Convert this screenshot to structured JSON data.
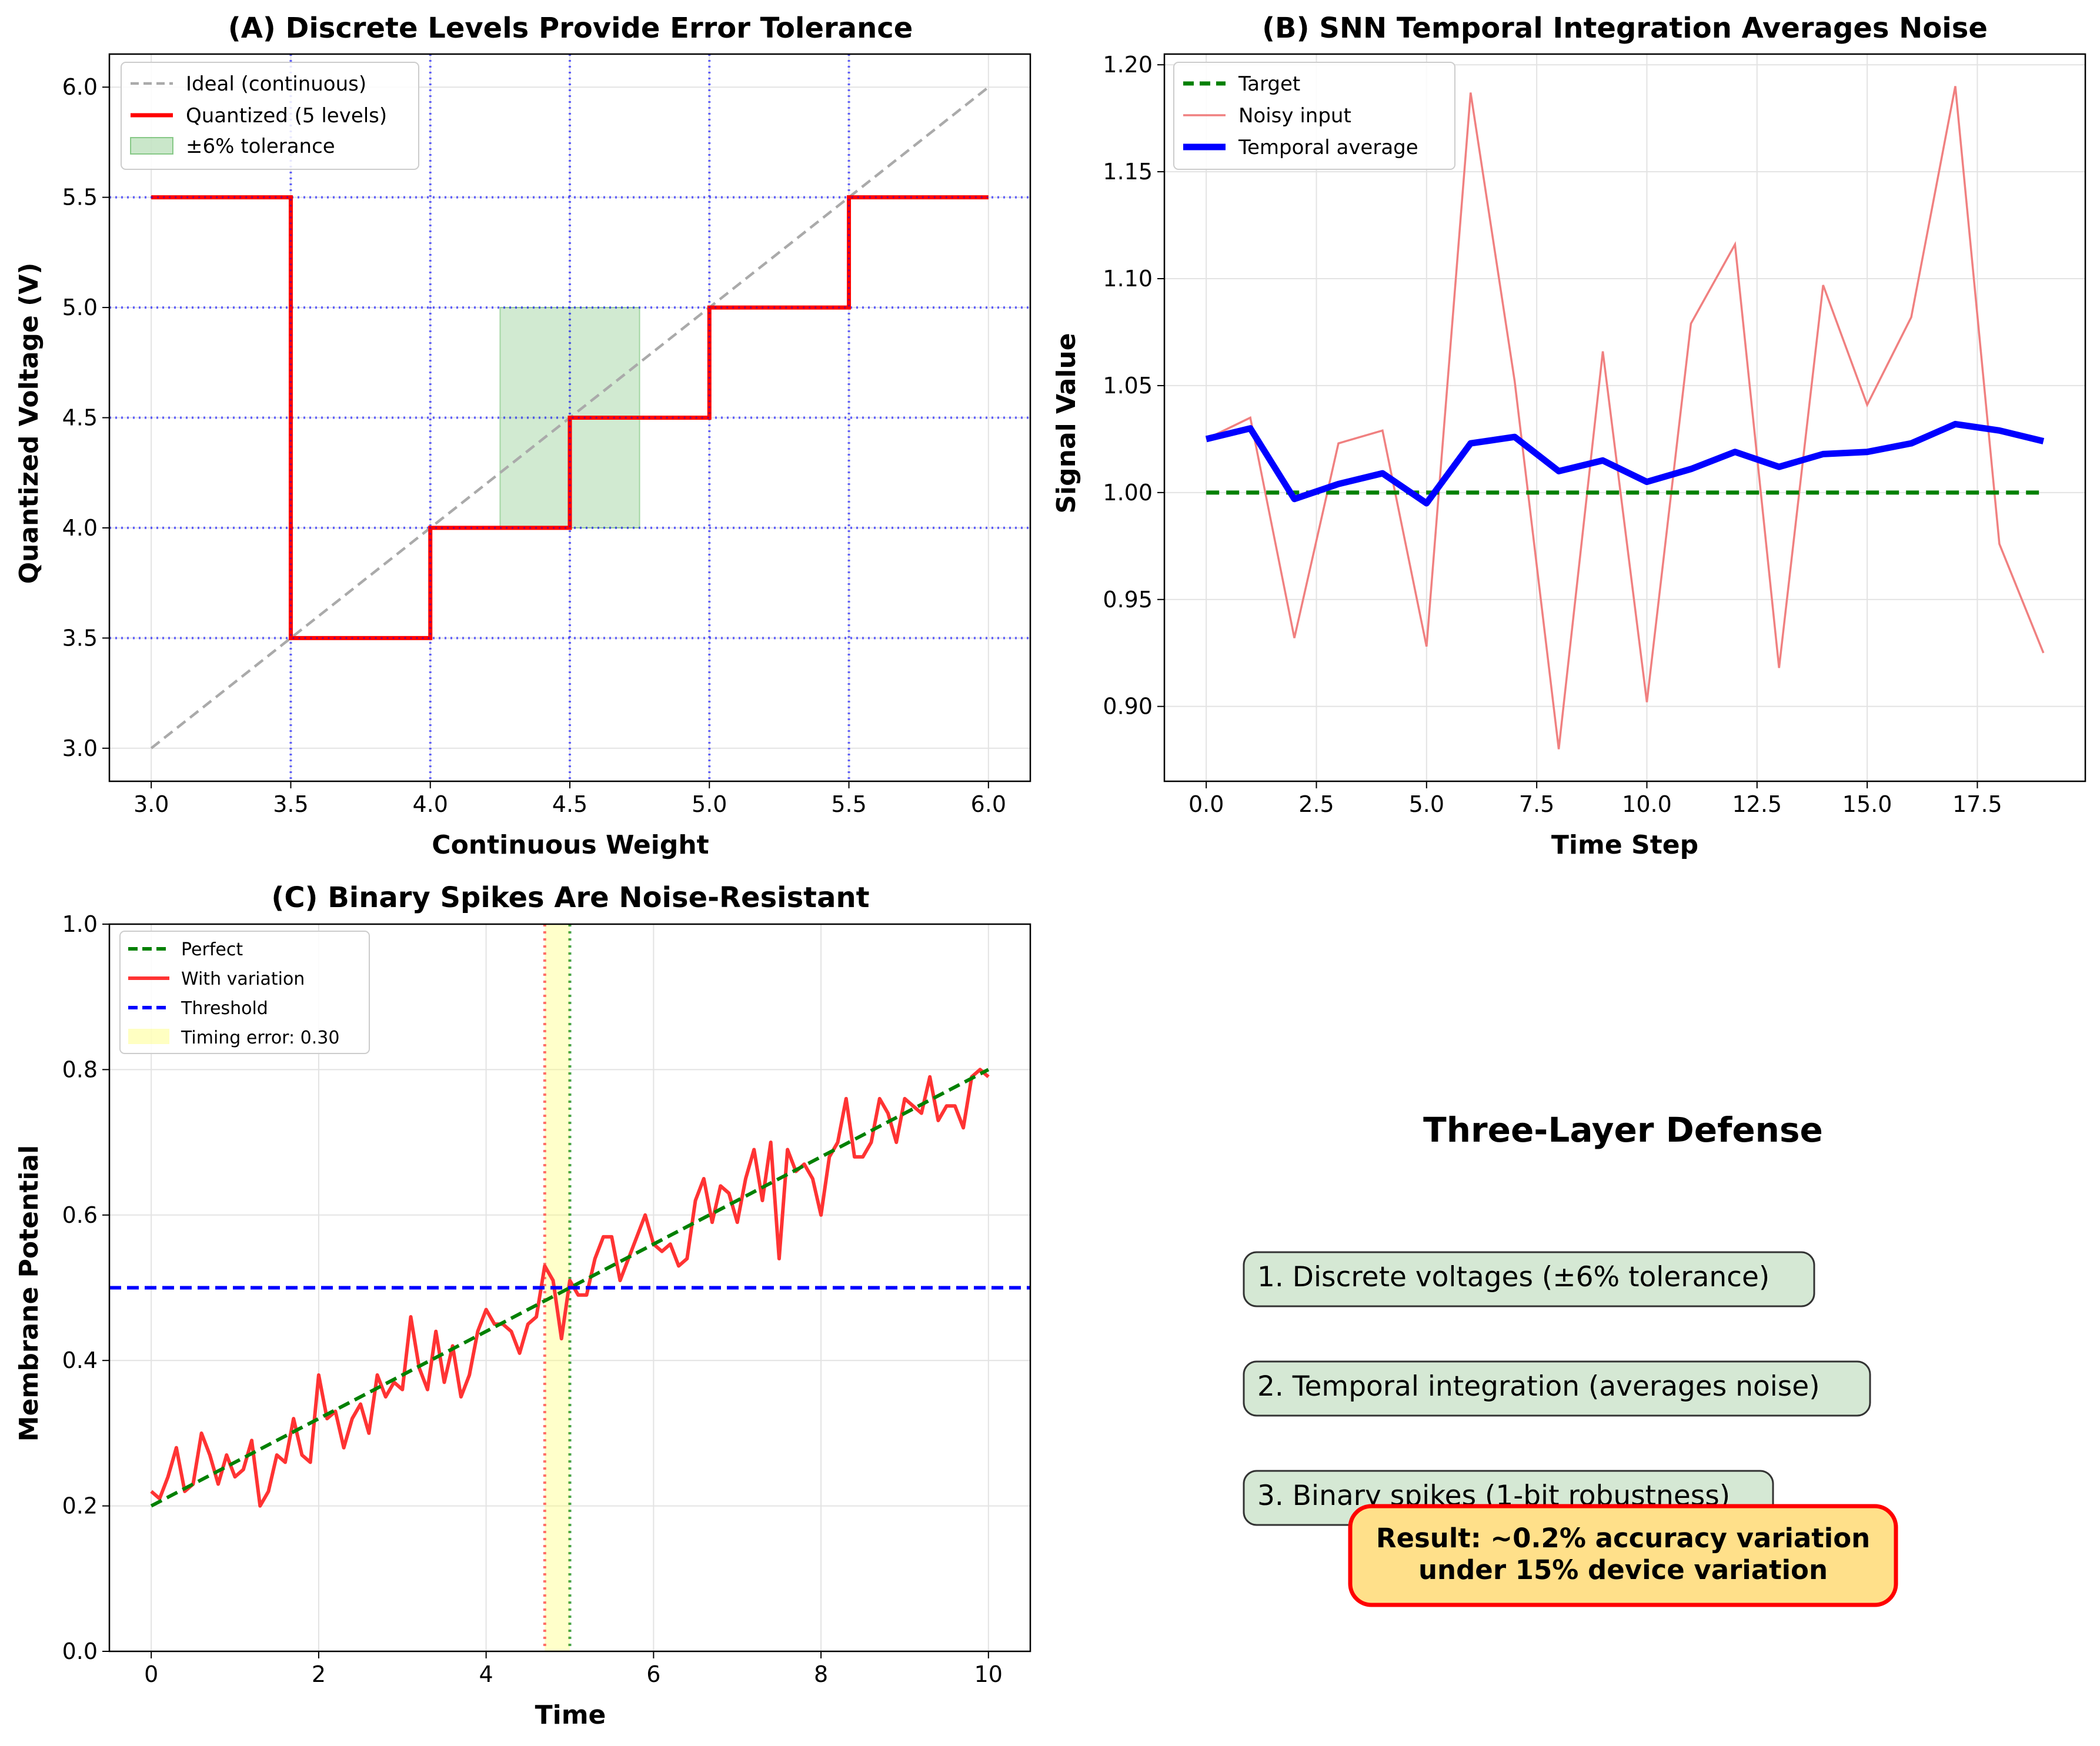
{
  "chart_data": [
    {
      "panel": "A",
      "type": "line",
      "title": "(A) Discrete Levels Provide Error Tolerance",
      "xlabel": "Continuous Weight",
      "ylabel": "Quantized Voltage (V)",
      "xlim": [
        2.85,
        6.15
      ],
      "ylim": [
        2.85,
        6.15
      ],
      "xticks": [
        "3.0",
        "3.5",
        "4.0",
        "4.5",
        "5.0",
        "5.5",
        "6.0"
      ],
      "yticks": [
        "3.0",
        "3.5",
        "4.0",
        "4.5",
        "5.0",
        "5.5",
        "6.0"
      ],
      "grid": true,
      "legend_position": "upper-left",
      "series": [
        {
          "name": "Ideal (continuous)",
          "style": "dashed",
          "color": "#aaaaaa",
          "x": [
            3.0,
            6.0
          ],
          "y": [
            3.0,
            6.0
          ]
        },
        {
          "name": "Quantized (5 levels)",
          "style": "step",
          "color": "#ff0000",
          "x": [
            3.0,
            3.5,
            3.5,
            4.0,
            4.0,
            4.5,
            4.5,
            5.0,
            5.0,
            5.5,
            5.5,
            6.0
          ],
          "y": [
            5.5,
            5.5,
            3.5,
            3.5,
            4.0,
            4.0,
            4.5,
            4.5,
            5.0,
            5.0,
            5.5,
            5.5
          ]
        }
      ],
      "tolerance_band": {
        "name": "±6% tolerance",
        "color": "#2ca02c",
        "x": [
          4.25,
          4.75
        ],
        "y": [
          4.0,
          5.0
        ]
      },
      "level_lines": {
        "color": "#0000ff",
        "horizontal": [
          3.5,
          4.0,
          4.5,
          5.0,
          5.5
        ],
        "vertical": [
          3.5,
          4.0,
          4.5,
          5.0,
          5.5
        ]
      }
    },
    {
      "panel": "B",
      "type": "line",
      "title": "(B) SNN Temporal Integration Averages Noise",
      "xlabel": "Time Step",
      "ylabel": "Signal Value",
      "xlim": [
        -0.95,
        19.95
      ],
      "ylim": [
        0.865,
        1.205
      ],
      "xticks": [
        "0.0",
        "2.5",
        "5.0",
        "7.5",
        "10.0",
        "12.5",
        "15.0",
        "17.5"
      ],
      "yticks": [
        "0.90",
        "0.95",
        "1.00",
        "1.05",
        "1.10",
        "1.15",
        "1.20"
      ],
      "grid": true,
      "legend_position": "upper-left",
      "x": [
        0,
        1,
        2,
        3,
        4,
        5,
        6,
        7,
        8,
        9,
        10,
        11,
        12,
        13,
        14,
        15,
        16,
        17,
        18,
        19
      ],
      "series": [
        {
          "name": "Target",
          "style": "dashed",
          "color": "#008000",
          "values": [
            1,
            1,
            1,
            1,
            1,
            1,
            1,
            1,
            1,
            1,
            1,
            1,
            1,
            1,
            1,
            1,
            1,
            1,
            1,
            1
          ]
        },
        {
          "name": "Noisy input",
          "style": "thin",
          "color": "#f08080",
          "values": [
            1.025,
            1.035,
            0.932,
            1.023,
            1.029,
            0.928,
            1.187,
            1.052,
            0.88,
            1.066,
            0.902,
            1.079,
            1.116,
            0.918,
            1.097,
            1.041,
            1.082,
            1.19,
            0.976,
            0.925
          ]
        },
        {
          "name": "Temporal average",
          "style": "thick",
          "color": "#0000ff",
          "values": [
            1.025,
            1.03,
            0.997,
            1.004,
            1.009,
            0.995,
            1.023,
            1.026,
            1.01,
            1.015,
            1.005,
            1.011,
            1.019,
            1.012,
            1.018,
            1.019,
            1.023,
            1.032,
            1.029,
            1.024
          ]
        }
      ]
    },
    {
      "panel": "C",
      "type": "line",
      "title": "(C) Binary Spikes Are Noise-Resistant",
      "xlabel": "Time",
      "ylabel": "Membrane Potential",
      "xlim": [
        -0.5,
        10.5
      ],
      "ylim": [
        0.0,
        1.0
      ],
      "xticks": [
        "0",
        "2",
        "4",
        "6",
        "8",
        "10"
      ],
      "yticks": [
        "0.0",
        "0.2",
        "0.4",
        "0.6",
        "0.8",
        "1.0"
      ],
      "grid": true,
      "legend_position": "upper-left",
      "series": [
        {
          "name": "Perfect",
          "style": "dashed",
          "color": "#008000",
          "x": [
            0,
            10
          ],
          "y": [
            0.2,
            0.8
          ]
        },
        {
          "name": "With variation",
          "style": "solid",
          "color": "#ff3333",
          "x": [
            0.0,
            0.1,
            0.2,
            0.3,
            0.4,
            0.5,
            0.6,
            0.7,
            0.8,
            0.9,
            1.0,
            1.1,
            1.2,
            1.3,
            1.4,
            1.5,
            1.6,
            1.7,
            1.8,
            1.9,
            2.0,
            2.1,
            2.2,
            2.3,
            2.4,
            2.5,
            2.6,
            2.7,
            2.8,
            2.9,
            3.0,
            3.1,
            3.2,
            3.3,
            3.4,
            3.5,
            3.6,
            3.7,
            3.8,
            3.9,
            4.0,
            4.1,
            4.2,
            4.3,
            4.4,
            4.5,
            4.6,
            4.7,
            4.8,
            4.9,
            5.0,
            5.1,
            5.2,
            5.3,
            5.4,
            5.5,
            5.6,
            5.7,
            5.8,
            5.9,
            6.0,
            6.1,
            6.2,
            6.3,
            6.4,
            6.5,
            6.6,
            6.7,
            6.8,
            6.9,
            7.0,
            7.1,
            7.2,
            7.3,
            7.4,
            7.5,
            7.6,
            7.7,
            7.8,
            7.9,
            8.0,
            8.1,
            8.2,
            8.3,
            8.4,
            8.5,
            8.6,
            8.7,
            8.8,
            8.9,
            9.0,
            9.1,
            9.2,
            9.3,
            9.4,
            9.5,
            9.6,
            9.7,
            9.8,
            9.9,
            10.0
          ],
          "y": [
            0.22,
            0.21,
            0.24,
            0.28,
            0.22,
            0.23,
            0.3,
            0.27,
            0.23,
            0.27,
            0.24,
            0.25,
            0.29,
            0.2,
            0.22,
            0.27,
            0.26,
            0.32,
            0.27,
            0.26,
            0.38,
            0.32,
            0.33,
            0.28,
            0.32,
            0.34,
            0.3,
            0.38,
            0.35,
            0.37,
            0.36,
            0.46,
            0.39,
            0.36,
            0.44,
            0.37,
            0.42,
            0.35,
            0.38,
            0.44,
            0.47,
            0.45,
            0.45,
            0.44,
            0.41,
            0.45,
            0.46,
            0.53,
            0.51,
            0.43,
            0.51,
            0.49,
            0.49,
            0.54,
            0.57,
            0.57,
            0.51,
            0.54,
            0.57,
            0.6,
            0.56,
            0.55,
            0.56,
            0.53,
            0.54,
            0.62,
            0.65,
            0.59,
            0.64,
            0.63,
            0.59,
            0.65,
            0.69,
            0.62,
            0.7,
            0.54,
            0.69,
            0.66,
            0.67,
            0.65,
            0.6,
            0.68,
            0.7,
            0.76,
            0.68,
            0.68,
            0.7,
            0.76,
            0.74,
            0.7,
            0.76,
            0.75,
            0.74,
            0.79,
            0.73,
            0.75,
            0.75,
            0.72,
            0.79,
            0.8,
            0.79
          ]
        },
        {
          "name": "Threshold",
          "style": "dashed",
          "color": "#0000ff",
          "x": [
            -0.5,
            10.5
          ],
          "y": [
            0.5,
            0.5
          ]
        }
      ],
      "timing_band": {
        "name": "Timing error: 0.30",
        "x": [
          4.7,
          5.0
        ],
        "color": "#ffff66"
      },
      "markers": {
        "perfect_crossing": 5.0,
        "noisy_crossing": 4.7
      }
    }
  ],
  "summary": {
    "title": "Three-Layer Defense",
    "items": [
      "1. Discrete voltages (±6% tolerance)",
      "2. Temporal integration (averages noise)",
      "3. Binary spikes (1-bit robustness)"
    ],
    "result_line1": "Result: ~0.2% accuracy variation",
    "result_line2": "under 15% device variation"
  }
}
